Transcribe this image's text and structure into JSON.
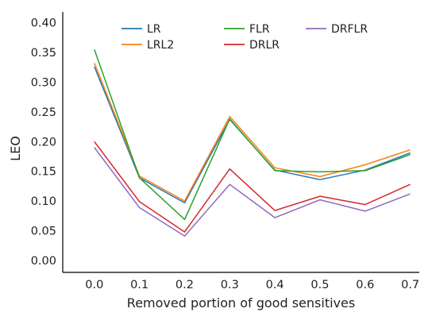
{
  "chart_data": {
    "type": "line",
    "xlabel": "Removed portion of good sensitives",
    "ylabel": "LEO",
    "x": [
      0.0,
      0.1,
      0.2,
      0.3,
      0.4,
      0.5,
      0.6,
      0.7
    ],
    "x_tick_labels": [
      "0.0",
      "0.1",
      "0.2",
      "0.3",
      "0.4",
      "0.5",
      "0.6",
      "0.7"
    ],
    "y_ticks": [
      0.0,
      0.05,
      0.1,
      0.15,
      0.2,
      0.25,
      0.3,
      0.35,
      0.4
    ],
    "y_tick_labels": [
      "0.00",
      "0.05",
      "0.10",
      "0.15",
      "0.20",
      "0.25",
      "0.30",
      "0.35",
      "0.40"
    ],
    "xlim": [
      -0.07,
      0.72
    ],
    "ylim": [
      -0.02,
      0.418
    ],
    "grid": false,
    "legend_position": "top-center",
    "legend_columns": 3,
    "series": [
      {
        "name": "LR",
        "color": "#1f77b4",
        "values": [
          0.326,
          0.139,
          0.097,
          0.237,
          0.152,
          0.136,
          0.152,
          0.181
        ]
      },
      {
        "name": "LRL2",
        "color": "#ff7f0e",
        "values": [
          0.332,
          0.142,
          0.1,
          0.242,
          0.156,
          0.141,
          0.161,
          0.186
        ]
      },
      {
        "name": "FLR",
        "color": "#2ca02c",
        "values": [
          0.355,
          0.139,
          0.069,
          0.238,
          0.151,
          0.149,
          0.151,
          0.178
        ]
      },
      {
        "name": "DRLR",
        "color": "#d62728",
        "values": [
          0.2,
          0.099,
          0.048,
          0.154,
          0.084,
          0.108,
          0.094,
          0.128
        ]
      },
      {
        "name": "DRFLR",
        "color": "#9467bd",
        "values": [
          0.19,
          0.089,
          0.041,
          0.128,
          0.072,
          0.102,
          0.083,
          0.112
        ]
      }
    ]
  }
}
